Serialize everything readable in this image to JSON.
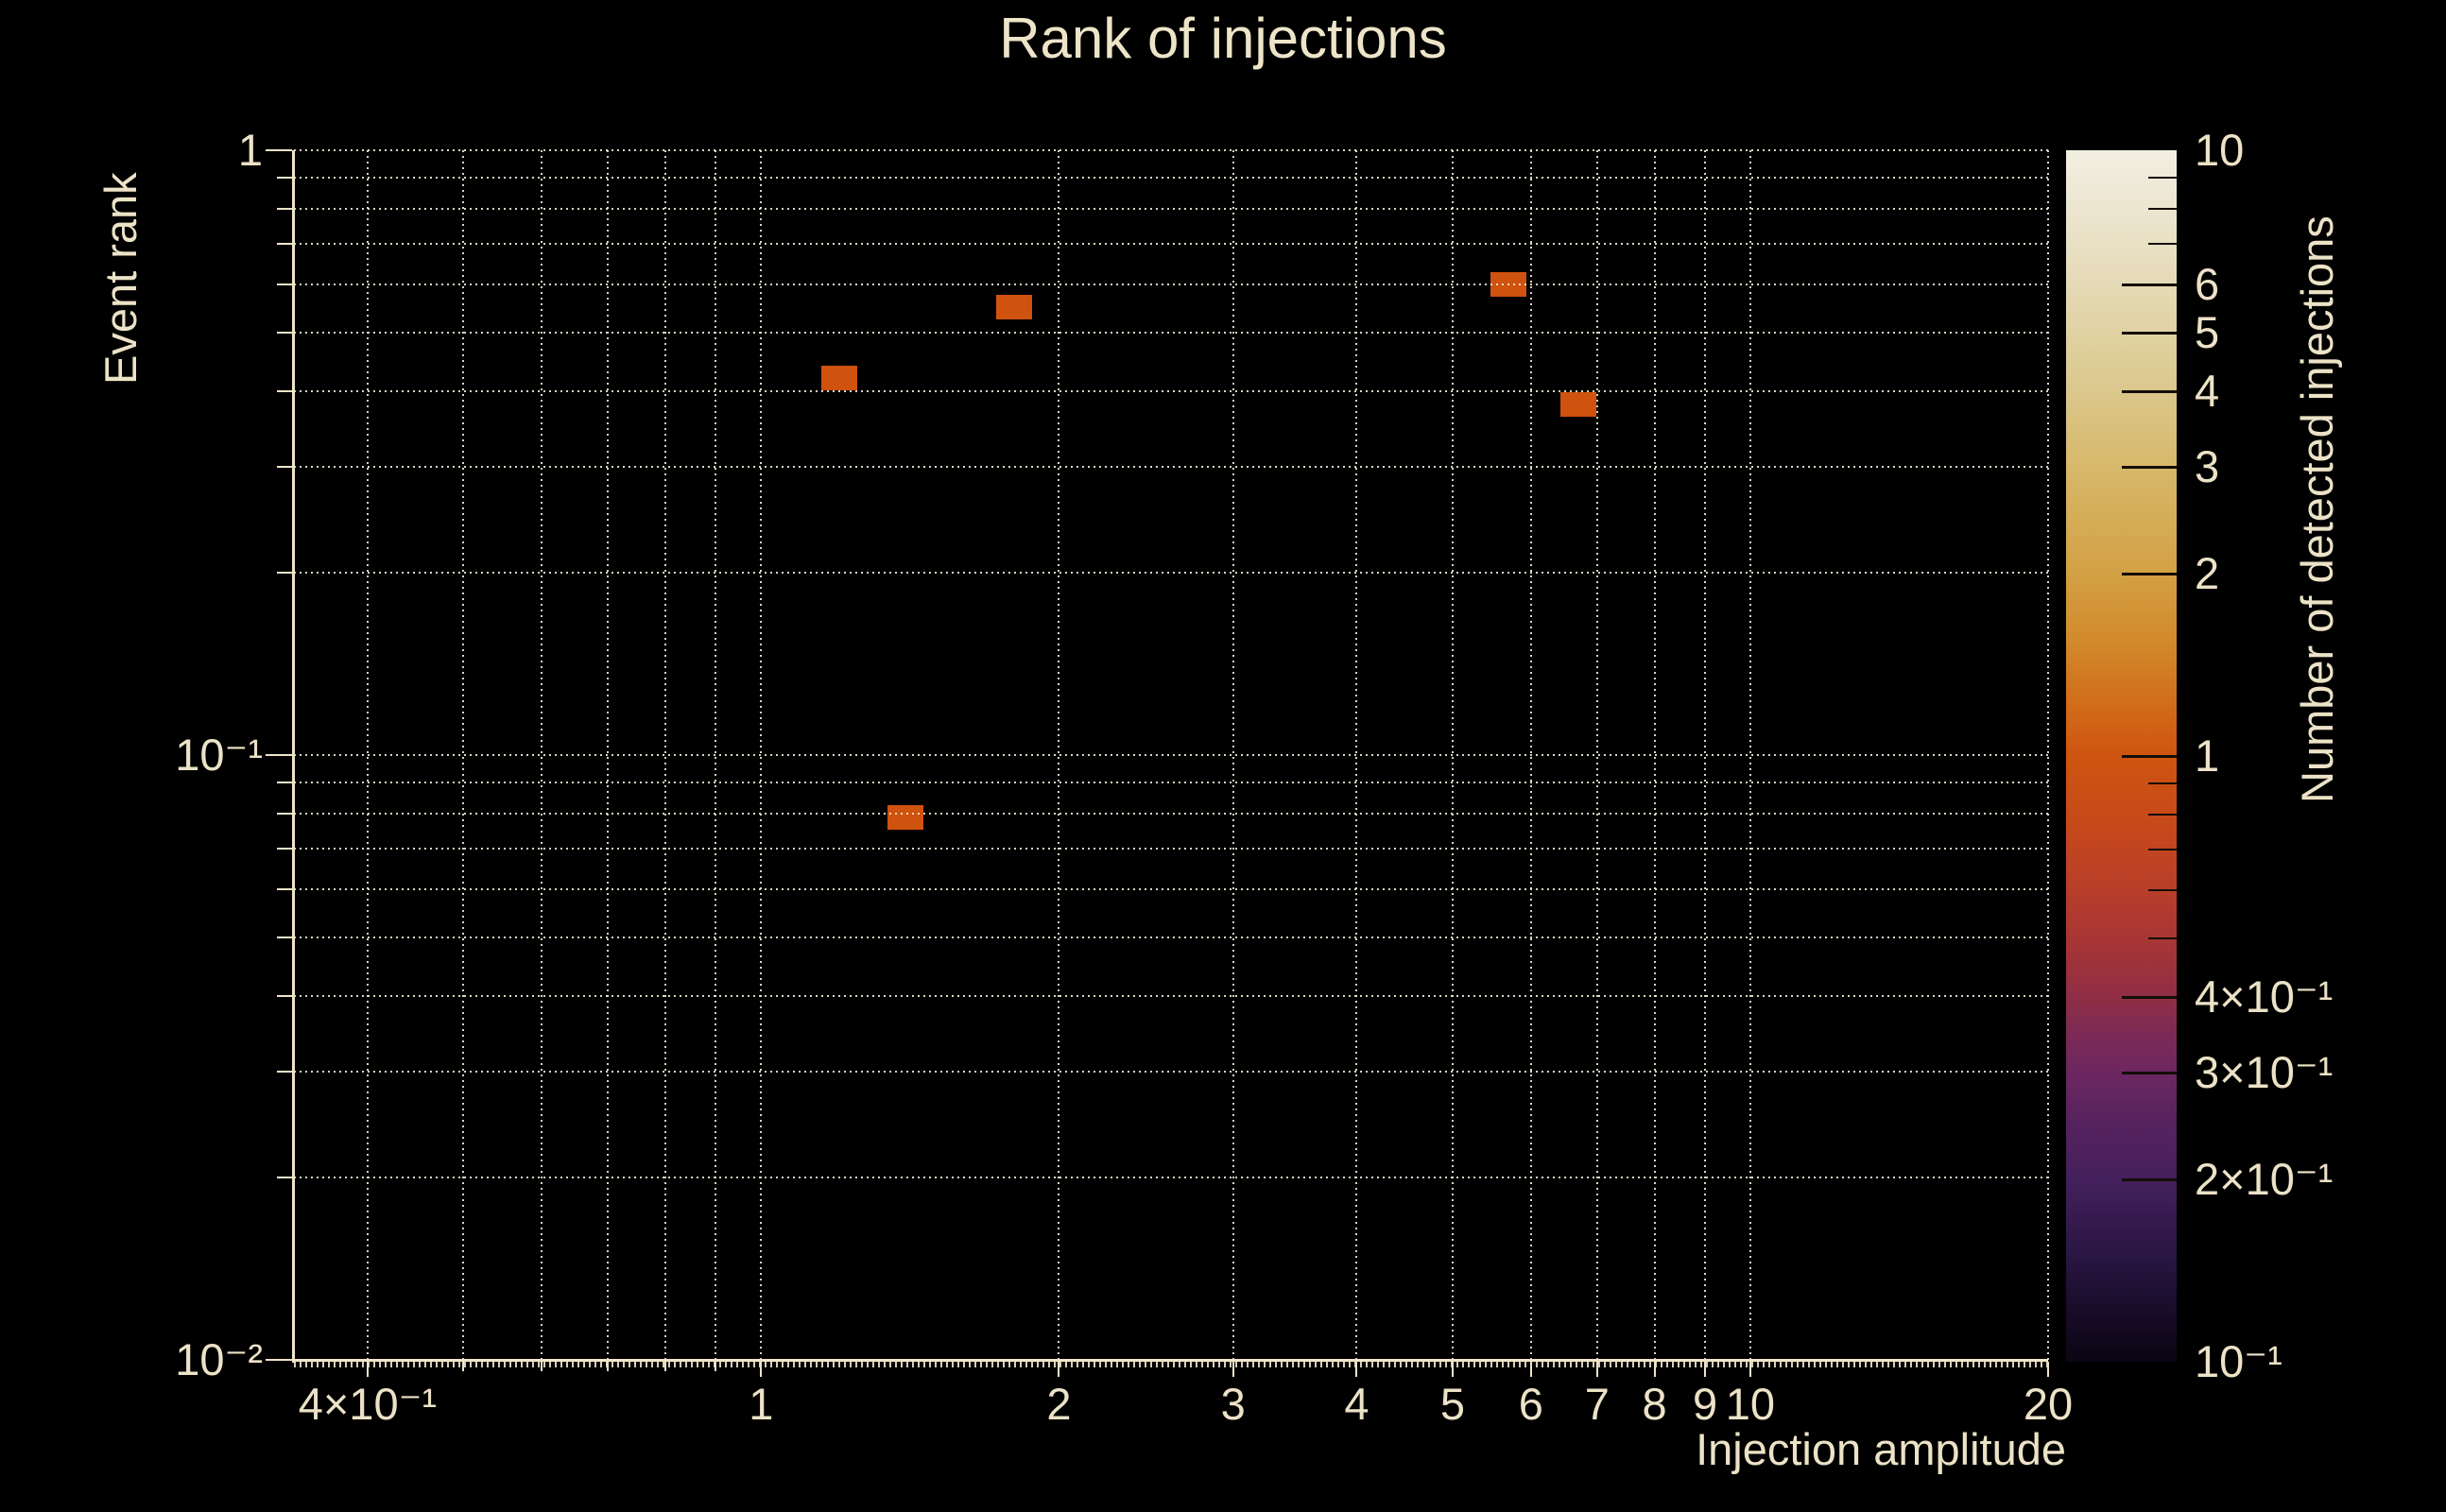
{
  "chart_data": {
    "type": "heatmap",
    "title": "Rank of injections",
    "xlabel": "Injection amplitude",
    "ylabel": "Event rank",
    "x_scale": "log",
    "y_scale": "log",
    "xlim": [
      0.337,
      20
    ],
    "ylim": [
      0.01,
      1
    ],
    "grid_style": "dotted",
    "x_ticks": [
      {
        "v": 0.4,
        "label": "4×10⁻¹"
      },
      {
        "v": 1,
        "label": "1"
      },
      {
        "v": 2,
        "label": "2"
      },
      {
        "v": 3,
        "label": "3"
      },
      {
        "v": 4,
        "label": "4"
      },
      {
        "v": 5,
        "label": "5"
      },
      {
        "v": 6,
        "label": "6"
      },
      {
        "v": 7,
        "label": "7"
      },
      {
        "v": 8,
        "label": "8"
      },
      {
        "v": 9,
        "label": "9"
      },
      {
        "v": 10,
        "label": "10"
      },
      {
        "v": 20,
        "label": "20"
      }
    ],
    "y_ticks": [
      {
        "v": 1,
        "label": "1"
      },
      {
        "v": 0.1,
        "label": "10⁻¹"
      },
      {
        "v": 0.01,
        "label": "10⁻²"
      }
    ],
    "x_grid": [
      0.4,
      0.5,
      0.6,
      0.7,
      0.8,
      0.9,
      1,
      2,
      3,
      4,
      5,
      6,
      7,
      8,
      9,
      10,
      20
    ],
    "y_grid": [
      1,
      0.9,
      0.8,
      0.7,
      0.6,
      0.5,
      0.4,
      0.3,
      0.2,
      0.1,
      0.09,
      0.08,
      0.07,
      0.06,
      0.05,
      0.04,
      0.03,
      0.02
    ],
    "points": [
      {
        "x": 1.2,
        "y": 0.42,
        "count": 1
      },
      {
        "x": 1.8,
        "y": 0.55,
        "count": 1
      },
      {
        "x": 1.4,
        "y": 0.079,
        "count": 1
      },
      {
        "x": 5.7,
        "y": 0.6,
        "count": 1
      },
      {
        "x": 6.7,
        "y": 0.38,
        "count": 1
      }
    ],
    "bin_color_count1": "#d0520f",
    "colorbar": {
      "label": "Number of detected injections",
      "scale": "log",
      "range": [
        0.1,
        10
      ],
      "ticks": [
        {
          "v": 10,
          "label": "10"
        },
        {
          "v": 6,
          "label": "6"
        },
        {
          "v": 5,
          "label": "5"
        },
        {
          "v": 4,
          "label": "4"
        },
        {
          "v": 3,
          "label": "3"
        },
        {
          "v": 2,
          "label": "2"
        },
        {
          "v": 1,
          "label": "1"
        },
        {
          "v": 0.4,
          "label": "4×10⁻¹"
        },
        {
          "v": 0.3,
          "label": "3×10⁻¹"
        },
        {
          "v": 0.2,
          "label": "2×10⁻¹"
        },
        {
          "v": 0.1,
          "label": "10⁻¹"
        }
      ],
      "minor_ticks": [
        9,
        8,
        7,
        0.9,
        0.8,
        0.7,
        0.6,
        0.5
      ],
      "gradient": [
        {
          "p": 0.0,
          "c": "#0b0513"
        },
        {
          "p": 0.045,
          "c": "#190d2b"
        },
        {
          "p": 0.095,
          "c": "#2c1746"
        },
        {
          "p": 0.15,
          "c": "#44205c"
        },
        {
          "p": 0.2,
          "c": "#58235f"
        },
        {
          "p": 0.24,
          "c": "#6d2760"
        },
        {
          "p": 0.27,
          "c": "#7c2a55"
        },
        {
          "p": 0.3,
          "c": "#8f2e46"
        },
        {
          "p": 0.35,
          "c": "#a93634"
        },
        {
          "p": 0.4,
          "c": "#bb4026"
        },
        {
          "p": 0.45,
          "c": "#c84a19"
        },
        {
          "p": 0.5,
          "c": "#cf5410"
        },
        {
          "p": 0.55,
          "c": "#d1711d"
        },
        {
          "p": 0.6,
          "c": "#d28c2e"
        },
        {
          "p": 0.65,
          "c": "#d3a044"
        },
        {
          "p": 0.7,
          "c": "#d5ae59"
        },
        {
          "p": 0.75,
          "c": "#d8bb71"
        },
        {
          "p": 0.8,
          "c": "#dbc78b"
        },
        {
          "p": 0.85,
          "c": "#e0d2a3"
        },
        {
          "p": 0.9,
          "c": "#e6dcbb"
        },
        {
          "p": 0.95,
          "c": "#ece5cf"
        },
        {
          "p": 1.0,
          "c": "#f2efe3"
        }
      ]
    },
    "colors": {
      "background": "#000000",
      "text": "#ece2c6",
      "grid": "#f2ebd7",
      "spine": "#eee4c8",
      "colorbar_tick": "#140e08"
    }
  }
}
